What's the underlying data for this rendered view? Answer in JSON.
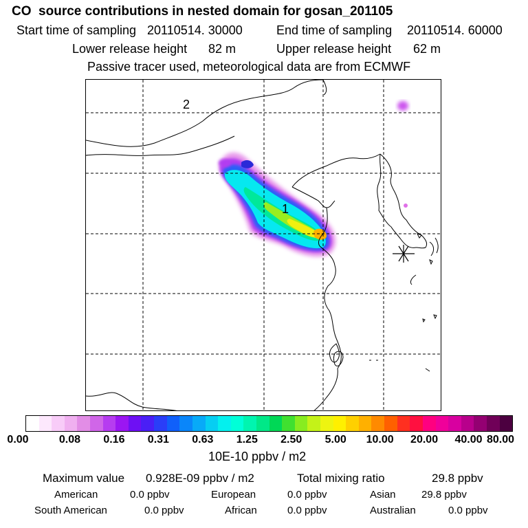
{
  "header": {
    "title": "CO  source contributions in nested domain for gosan_201105",
    "start_label": "Start time of sampling",
    "start_value": "20110514. 30000",
    "end_label": "End time of sampling",
    "end_value": "20110514. 60000",
    "lower_label": "Lower release height",
    "lower_value": "82 m",
    "upper_label": "Upper release height",
    "upper_value": "62 m",
    "note": "Passive tracer used, meteorological data are from ECMWF"
  },
  "map": {
    "marker_1": "1",
    "marker_2": "2",
    "receptor_icon": "star-receptor-icon"
  },
  "colorbar": {
    "colors": [
      "#ffffff",
      "#fde8fd",
      "#f8ccf8",
      "#f0b0f0",
      "#e28de6",
      "#d066e8",
      "#b63cf0",
      "#9b16f2",
      "#6e10f4",
      "#4a1ff6",
      "#2a3ef8",
      "#1060fa",
      "#0a86fa",
      "#08aaf8",
      "#06cef2",
      "#04f0ee",
      "#00ffd8",
      "#00f5b0",
      "#00e888",
      "#00d856",
      "#40e030",
      "#88ec20",
      "#c4f218",
      "#eef410",
      "#fff000",
      "#ffd000",
      "#ffb000",
      "#ff8a00",
      "#ff6000",
      "#ff3020",
      "#ff1040",
      "#ff0080",
      "#f0009a",
      "#d800a0",
      "#b8008c",
      "#940072",
      "#700058",
      "#4c0040"
    ],
    "tick_labels": [
      "0.00",
      "0.08",
      "0.16",
      "0.31",
      "0.63",
      "1.25",
      "2.50",
      "5.00",
      "10.00",
      "20.00",
      "40.00",
      "80.00"
    ],
    "units": "10E-10 ppbv / m2"
  },
  "stats": {
    "max_label": "Maximum value",
    "max_value": "0.928E-09 ppbv / m2",
    "total_label": "Total mixing ratio",
    "total_value": "29.8 ppbv",
    "american_label": "American",
    "american_value": "0.0 ppbv",
    "european_label": "European",
    "european_value": "0.0 ppbv",
    "asian_label": "Asian",
    "asian_value": "29.8 ppbv",
    "south_american_label": "South American",
    "south_american_value": "0.0 ppbv",
    "african_label": "African",
    "african_value": "0.0 ppbv",
    "australian_label": "Australian",
    "australian_value": "0.0 ppbv"
  }
}
